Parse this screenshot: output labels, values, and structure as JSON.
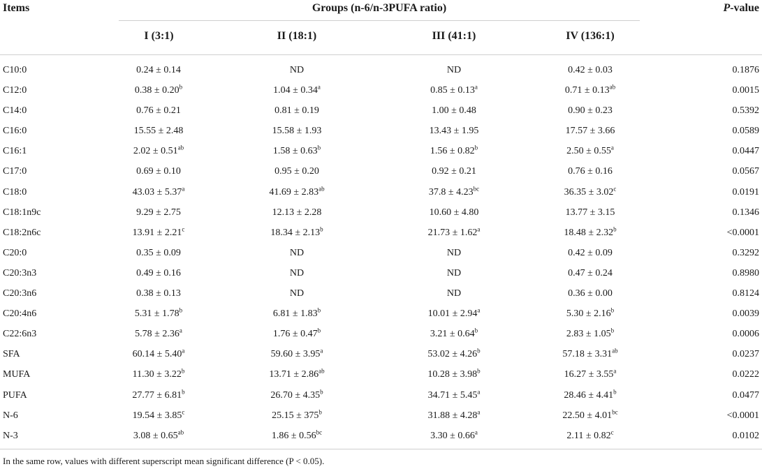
{
  "header": {
    "items_label": "Items",
    "groups_label": "Groups (n-6/n-3PUFA ratio)",
    "pvalue_italic": "P",
    "pvalue_rest": "-value",
    "group_columns": [
      "I (3:1)",
      "II (18:1)",
      "III (41:1)",
      "IV (136:1)"
    ]
  },
  "rows": [
    {
      "item": "C10:0",
      "g": [
        [
          "0.24 ± 0.14",
          ""
        ],
        [
          "ND",
          ""
        ],
        [
          "ND",
          ""
        ],
        [
          "0.42 ± 0.03",
          ""
        ]
      ],
      "p": "0.1876"
    },
    {
      "item": "C12:0",
      "g": [
        [
          "0.38 ± 0.20",
          "b"
        ],
        [
          "1.04 ± 0.34",
          "a"
        ],
        [
          "0.85 ± 0.13",
          "a"
        ],
        [
          "0.71 ± 0.13",
          "ab"
        ]
      ],
      "p": "0.0015"
    },
    {
      "item": "C14:0",
      "g": [
        [
          "0.76 ± 0.21",
          ""
        ],
        [
          "0.81 ± 0.19",
          ""
        ],
        [
          "1.00 ± 0.48",
          ""
        ],
        [
          "0.90 ± 0.23",
          ""
        ]
      ],
      "p": "0.5392"
    },
    {
      "item": "C16:0",
      "g": [
        [
          "15.55 ± 2.48",
          ""
        ],
        [
          "15.58 ± 1.93",
          ""
        ],
        [
          "13.43 ± 1.95",
          ""
        ],
        [
          "17.57 ± 3.66",
          ""
        ]
      ],
      "p": "0.0589"
    },
    {
      "item": "C16:1",
      "g": [
        [
          "2.02 ± 0.51",
          "ab"
        ],
        [
          "1.58 ± 0.63",
          "b"
        ],
        [
          "1.56 ± 0.82",
          "b"
        ],
        [
          "2.50 ± 0.55",
          "a"
        ]
      ],
      "p": "0.0447"
    },
    {
      "item": "C17:0",
      "g": [
        [
          "0.69 ± 0.10",
          ""
        ],
        [
          "0.95 ± 0.20",
          ""
        ],
        [
          "0.92 ± 0.21",
          ""
        ],
        [
          "0.76 ± 0.16",
          ""
        ]
      ],
      "p": "0.0567"
    },
    {
      "item": "C18:0",
      "g": [
        [
          "43.03 ± 5.37",
          "a"
        ],
        [
          "41.69 ± 2.83",
          "ab"
        ],
        [
          "37.8 ± 4.23",
          "bc"
        ],
        [
          "36.35 ± 3.02",
          "c"
        ]
      ],
      "p": "0.0191"
    },
    {
      "item": "C18:1n9c",
      "g": [
        [
          "9.29 ± 2.75",
          ""
        ],
        [
          "12.13 ± 2.28",
          ""
        ],
        [
          "10.60 ± 4.80",
          ""
        ],
        [
          "13.77 ± 3.15",
          ""
        ]
      ],
      "p": "0.1346"
    },
    {
      "item": "C18:2n6c",
      "g": [
        [
          "13.91 ± 2.21",
          "c"
        ],
        [
          "18.34 ± 2.13",
          "b"
        ],
        [
          "21.73 ± 1.62",
          "a"
        ],
        [
          "18.48 ± 2.32",
          "b"
        ]
      ],
      "p": "<0.0001"
    },
    {
      "item": "C20:0",
      "g": [
        [
          "0.35 ± 0.09",
          ""
        ],
        [
          "ND",
          ""
        ],
        [
          "ND",
          ""
        ],
        [
          "0.42 ± 0.09",
          ""
        ]
      ],
      "p": "0.3292"
    },
    {
      "item": "C20:3n3",
      "g": [
        [
          "0.49 ± 0.16",
          ""
        ],
        [
          "ND",
          ""
        ],
        [
          "ND",
          ""
        ],
        [
          "0.47 ± 0.24",
          ""
        ]
      ],
      "p": "0.8980"
    },
    {
      "item": "C20:3n6",
      "g": [
        [
          "0.38 ± 0.13",
          ""
        ],
        [
          "ND",
          ""
        ],
        [
          "ND",
          ""
        ],
        [
          "0.36 ± 0.00",
          ""
        ]
      ],
      "p": "0.8124"
    },
    {
      "item": "C20:4n6",
      "g": [
        [
          "5.31 ± 1.78",
          "b"
        ],
        [
          "6.81 ± 1.83",
          "b"
        ],
        [
          "10.01 ± 2.94",
          "a"
        ],
        [
          "5.30 ± 2.16",
          "b"
        ]
      ],
      "p": "0.0039"
    },
    {
      "item": "C22:6n3",
      "g": [
        [
          "5.78 ± 2.36",
          "a"
        ],
        [
          "1.76 ± 0.47",
          "b"
        ],
        [
          "3.21 ± 0.64",
          "b"
        ],
        [
          "2.83 ± 1.05",
          "b"
        ]
      ],
      "p": "0.0006"
    },
    {
      "item": "SFA",
      "g": [
        [
          "60.14 ± 5.40",
          "a"
        ],
        [
          "59.60 ± 3.95",
          "a"
        ],
        [
          "53.02 ± 4.26",
          "b"
        ],
        [
          "57.18 ± 3.31",
          "ab"
        ]
      ],
      "p": "0.0237"
    },
    {
      "item": "MUFA",
      "g": [
        [
          "11.30 ± 3.22",
          "b"
        ],
        [
          "13.71 ± 2.86",
          "ab"
        ],
        [
          "10.28 ± 3.98",
          "b"
        ],
        [
          "16.27 ± 3.55",
          "a"
        ]
      ],
      "p": "0.0222"
    },
    {
      "item": "PUFA",
      "g": [
        [
          "27.77 ± 6.81",
          "b"
        ],
        [
          "26.70 ± 4.35",
          "b"
        ],
        [
          "34.71 ± 5.45",
          "a"
        ],
        [
          "28.46 ± 4.41",
          "b"
        ]
      ],
      "p": "0.0477"
    },
    {
      "item": "N-6",
      "g": [
        [
          "19.54 ± 3.85",
          "c"
        ],
        [
          "25.15 ± 375",
          "b"
        ],
        [
          "31.88 ± 4.28",
          "a"
        ],
        [
          "22.50 ± 4.01",
          "bc"
        ]
      ],
      "p": "<0.0001"
    },
    {
      "item": "N-3",
      "g": [
        [
          "3.08 ± 0.65",
          "ab"
        ],
        [
          "1.86 ± 0.56",
          "bc"
        ],
        [
          "3.30 ± 0.66",
          "a"
        ],
        [
          "2.11 ± 0.82",
          "c"
        ]
      ],
      "p": "0.0102"
    }
  ],
  "footnote": "In the same row, values with different superscript mean significant difference (P < 0.05)."
}
